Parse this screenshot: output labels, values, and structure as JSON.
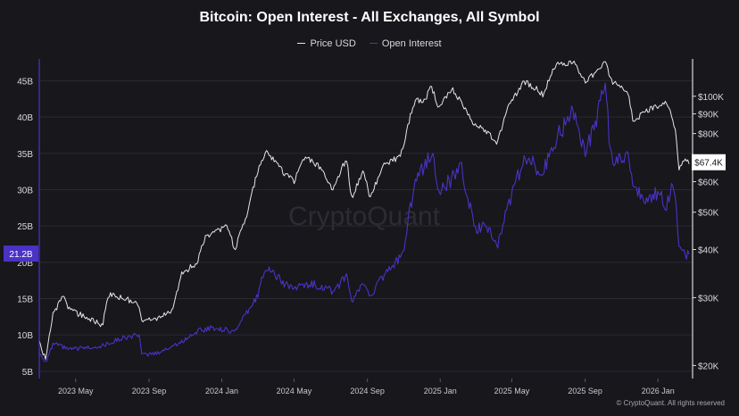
{
  "chart_data": {
    "type": "line",
    "title": "Bitcoin: Open Interest - All Exchanges, All Symbol",
    "legend_placement": "top-center",
    "grid": true,
    "colors": {
      "background": "#17171c",
      "price": "#e6e6ea",
      "open_interest": "#4a33c4",
      "grid": "#2a2a31",
      "watermark": "#2c2c33"
    },
    "x_ticks": [
      "2023 May",
      "2023 Sep",
      "2024 Jan",
      "2024 May",
      "2024 Sep",
      "2025 Jan",
      "2025 May",
      "2025 Sep",
      "2026 Jan"
    ],
    "x_range": [
      "2023-03-01",
      "2026-02-28"
    ],
    "left_axis": {
      "ticks": [
        "5B",
        "10B",
        "15B",
        "20B",
        "25B",
        "30B",
        "35B",
        "40B",
        "45B"
      ],
      "values": [
        5,
        10,
        15,
        20,
        25,
        30,
        35,
        40,
        45
      ],
      "range": [
        4,
        48
      ],
      "unit": "B",
      "current_label": "21.2B",
      "current_value": 21.2
    },
    "right_axis": {
      "scale": "log",
      "ticks": [
        "$20K",
        "$30K",
        "$40K",
        "$50K",
        "$60K",
        "$80K",
        "$90K",
        "$100K"
      ],
      "values": [
        20000,
        30000,
        40000,
        50000,
        60000,
        80000,
        90000,
        100000
      ],
      "range": [
        18500,
        125000
      ],
      "current_label": "$67.4K",
      "current_value": 67400
    },
    "series": [
      {
        "name": "Price USD",
        "axis": "right",
        "x": [
          "2023-03-01",
          "2023-03-12",
          "2023-03-25",
          "2023-04-10",
          "2023-04-20",
          "2023-05-10",
          "2023-06-15",
          "2023-06-25",
          "2023-07-15",
          "2023-08-15",
          "2023-08-20",
          "2023-09-15",
          "2023-10-10",
          "2023-10-25",
          "2023-11-20",
          "2023-12-05",
          "2024-01-10",
          "2024-01-23",
          "2024-02-10",
          "2024-02-28",
          "2024-03-14",
          "2024-04-15",
          "2024-05-01",
          "2024-05-20",
          "2024-06-15",
          "2024-07-05",
          "2024-07-28",
          "2024-08-05",
          "2024-08-25",
          "2024-09-06",
          "2024-09-27",
          "2024-10-20",
          "2024-10-30",
          "2024-11-13",
          "2024-11-22",
          "2024-12-05",
          "2024-12-17",
          "2024-12-30",
          "2025-01-20",
          "2025-02-05",
          "2025-02-28",
          "2025-03-15",
          "2025-04-07",
          "2025-04-25",
          "2025-05-22",
          "2025-06-10",
          "2025-06-22",
          "2025-07-14",
          "2025-08-14",
          "2025-09-01",
          "2025-09-20",
          "2025-10-06",
          "2025-10-11",
          "2025-10-20",
          "2025-11-10",
          "2025-11-21",
          "2025-12-10",
          "2026-01-05",
          "2026-01-14",
          "2026-01-25",
          "2026-02-01",
          "2026-02-05",
          "2026-02-12",
          "2026-02-22"
        ],
        "values": [
          23000,
          20500,
          27500,
          30000,
          28000,
          27000,
          25500,
          30500,
          30000,
          29000,
          26000,
          26500,
          27500,
          34500,
          37000,
          43000,
          46000,
          40000,
          48000,
          62000,
          72000,
          63000,
          60000,
          70000,
          65000,
          57000,
          69000,
          54000,
          64000,
          54000,
          66000,
          69000,
          72000,
          90000,
          98000,
          97000,
          106000,
          93000,
          105000,
          97000,
          84000,
          82000,
          76000,
          94000,
          109000,
          105000,
          101000,
          121000,
          122000,
          108000,
          116000,
          124000,
          112000,
          108000,
          104000,
          85000,
          92000,
          94000,
          97000,
          88000,
          78000,
          64000,
          68000,
          67400
        ]
      },
      {
        "name": "Open Interest",
        "axis": "left",
        "x": [
          "2023-03-01",
          "2023-03-12",
          "2023-03-25",
          "2023-04-20",
          "2023-06-15",
          "2023-07-15",
          "2023-08-15",
          "2023-08-20",
          "2023-09-15",
          "2023-10-25",
          "2023-11-20",
          "2023-12-15",
          "2024-01-23",
          "2024-02-28",
          "2024-03-14",
          "2024-04-15",
          "2024-05-01",
          "2024-06-05",
          "2024-07-05",
          "2024-07-28",
          "2024-08-05",
          "2024-08-25",
          "2024-09-06",
          "2024-09-27",
          "2024-10-30",
          "2024-11-13",
          "2024-11-22",
          "2024-12-05",
          "2024-12-17",
          "2024-12-30",
          "2025-01-20",
          "2025-02-05",
          "2025-02-28",
          "2025-03-15",
          "2025-04-07",
          "2025-04-25",
          "2025-05-22",
          "2025-06-22",
          "2025-07-14",
          "2025-08-14",
          "2025-09-01",
          "2025-09-20",
          "2025-10-06",
          "2025-10-11",
          "2025-10-20",
          "2025-11-10",
          "2025-11-21",
          "2025-12-10",
          "2026-01-05",
          "2026-01-14",
          "2026-01-25",
          "2026-02-01",
          "2026-02-05",
          "2026-02-12",
          "2026-02-22"
        ],
        "values": [
          7.5,
          6.3,
          8.8,
          8.0,
          8.5,
          9.5,
          10.0,
          7.2,
          7.5,
          9.0,
          10.5,
          11.0,
          10.5,
          15.0,
          19.5,
          17.0,
          16.5,
          17.0,
          16.0,
          18.0,
          14.5,
          17.0,
          15.5,
          18.0,
          21.0,
          28.0,
          32.0,
          33.0,
          35.5,
          29.5,
          31.5,
          33.0,
          24.5,
          25.0,
          22.5,
          28.0,
          34.5,
          32.5,
          37.0,
          41.0,
          35.0,
          40.0,
          45.5,
          35.5,
          34.0,
          35.0,
          31.0,
          28.0,
          30.0,
          27.5,
          30.5,
          27.0,
          22.0,
          21.0,
          21.2
        ]
      }
    ],
    "watermark": "CryptoQuant",
    "credit": "© CryptoQuant. All rights reserved"
  }
}
